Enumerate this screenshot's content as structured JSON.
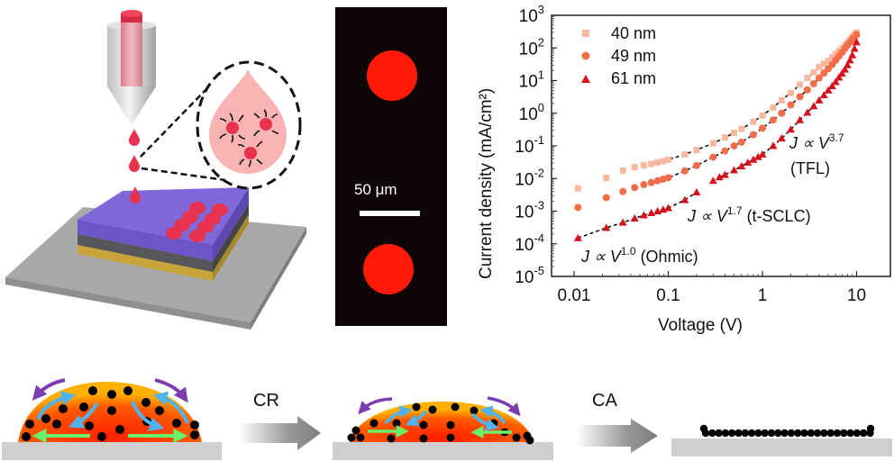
{
  "figure": {
    "panel_a": {
      "description": "Inkjet printing of quantum-dot ink droplets onto a layered substrate",
      "colors": {
        "nozzle_ink": "#e8334f",
        "droplet": "#e8334f",
        "inset_drop": "#f9b3b3",
        "top_layer": "#7a63d6",
        "middle_layer": "#58585c",
        "bottom_layer": "#c9a43b",
        "base": "#a8a8a8"
      }
    },
    "panel_b": {
      "scale_bar_label": "50 μm",
      "colors": {
        "background": "#0e0606",
        "dots": "#ff1a0a"
      }
    },
    "panel_d": {
      "step1_label": "CR",
      "step2_label": "CA",
      "colors": {
        "drop_center": "#ff2a00",
        "drop_edge": "#ffa200",
        "particles": "#000000",
        "substrate": "#cfcfcf",
        "arrow_purple": "#7b3db0",
        "arrow_blue": "#4fb3ef",
        "arrow_green": "#6af06a",
        "process_arrow": "#8a8a8a"
      }
    }
  },
  "chart_data": {
    "type": "scatter",
    "title": "",
    "xlabel": "Voltage (V)",
    "ylabel": "Current density (mA/cm²)",
    "xscale": "log",
    "yscale": "log",
    "xlim": [
      0.008,
      14
    ],
    "ylim": [
      1e-05,
      1000
    ],
    "xticks": [
      {
        "value": 0.01,
        "label": "0.01"
      },
      {
        "value": 0.1,
        "label": "0.1"
      },
      {
        "value": 1,
        "label": "1"
      },
      {
        "value": 10,
        "label": "10"
      }
    ],
    "yticks": [
      {
        "value": 1e-05,
        "base": "10",
        "exp": "-5"
      },
      {
        "value": 0.0001,
        "base": "10",
        "exp": "-4"
      },
      {
        "value": 0.001,
        "base": "10",
        "exp": "-3"
      },
      {
        "value": 0.01,
        "base": "10",
        "exp": "-2"
      },
      {
        "value": 0.1,
        "base": "10",
        "exp": "-1"
      },
      {
        "value": 1,
        "base": "10",
        "exp": "0"
      },
      {
        "value": 10,
        "base": "10",
        "exp": "1"
      },
      {
        "value": 100,
        "base": "10",
        "exp": "2"
      },
      {
        "value": 1000,
        "base": "10",
        "exp": "3"
      }
    ],
    "grid": false,
    "legend_position": "top-left",
    "series": [
      {
        "name": "40 nm",
        "marker": "square",
        "color": "#f8b9a0",
        "x": [
          0.011,
          0.022,
          0.033,
          0.044,
          0.055,
          0.066,
          0.077,
          0.088,
          0.1,
          0.15,
          0.2,
          0.3,
          0.4,
          0.5,
          0.6,
          0.8,
          1.0,
          1.3,
          1.6,
          2.0,
          2.5,
          3.0,
          3.5,
          4.0,
          4.5,
          5.0,
          5.5,
          6.0,
          6.5,
          7.0,
          7.5,
          8.0,
          8.5,
          9.0,
          9.5,
          10.0
        ],
        "y": [
          0.005,
          0.0105,
          0.0175,
          0.022,
          0.025,
          0.028,
          0.031,
          0.034,
          0.038,
          0.055,
          0.075,
          0.12,
          0.18,
          0.25,
          0.33,
          0.55,
          0.85,
          1.5,
          2.5,
          4.2,
          7.5,
          12,
          18,
          26,
          33,
          40,
          52,
          66,
          82,
          100,
          122,
          148,
          178,
          215,
          255,
          300
        ]
      },
      {
        "name": "49 nm",
        "marker": "circle",
        "color": "#f26d4a",
        "x": [
          0.011,
          0.022,
          0.033,
          0.044,
          0.055,
          0.066,
          0.077,
          0.088,
          0.1,
          0.15,
          0.2,
          0.3,
          0.4,
          0.5,
          0.6,
          0.8,
          1.0,
          1.3,
          1.6,
          2.0,
          2.5,
          3.0,
          3.5,
          4.0,
          4.5,
          5.0,
          5.5,
          6.0,
          6.5,
          7.0,
          7.5,
          8.0,
          8.5,
          9.0,
          9.5,
          10.0
        ],
        "y": [
          0.0013,
          0.0026,
          0.004,
          0.0053,
          0.0065,
          0.0075,
          0.0085,
          0.0095,
          0.0105,
          0.017,
          0.025,
          0.045,
          0.07,
          0.1,
          0.13,
          0.22,
          0.35,
          0.62,
          1.0,
          1.8,
          3.2,
          5.2,
          8.0,
          12,
          17,
          23,
          31,
          42,
          56,
          73,
          95,
          120,
          150,
          185,
          220,
          255
        ]
      },
      {
        "name": "61 nm",
        "marker": "triangle",
        "color": "#d7101f",
        "x": [
          0.011,
          0.022,
          0.033,
          0.044,
          0.055,
          0.066,
          0.077,
          0.088,
          0.1,
          0.15,
          0.2,
          0.3,
          0.35,
          0.4,
          0.5,
          0.6,
          0.7,
          0.8,
          0.9,
          1.0,
          1.3,
          1.6,
          2.0,
          2.5,
          3.0,
          3.5,
          4.0,
          4.5,
          5.0,
          5.5,
          6.0,
          6.5,
          7.0,
          7.5,
          8.0,
          8.5,
          9.0,
          9.5,
          10.0
        ],
        "y": [
          0.00015,
          0.00031,
          0.00045,
          0.0006,
          0.00075,
          0.00088,
          0.001,
          0.00112,
          0.00125,
          0.0022,
          0.0038,
          0.0085,
          0.011,
          0.013,
          0.018,
          0.024,
          0.031,
          0.038,
          0.046,
          0.055,
          0.1,
          0.17,
          0.32,
          0.62,
          1.05,
          1.65,
          2.5,
          3.6,
          5.0,
          6.8,
          9.2,
          12.5,
          16.5,
          22,
          30,
          42,
          60,
          95,
          150
        ]
      }
    ],
    "fit_lines": [
      {
        "series": "40 nm",
        "x_range": [
          0.066,
          5.5
        ],
        "description": "dashed fit"
      },
      {
        "series": "49 nm",
        "x_range": [
          0.066,
          6.0
        ],
        "description": "dashed fit"
      },
      {
        "series": "61 nm",
        "x_range": [
          0.011,
          0.2
        ],
        "slope": 1.0,
        "description": "Ohmic fit"
      },
      {
        "series": "61 nm",
        "x_range": [
          0.35,
          1.0
        ],
        "slope": 1.7,
        "description": "t-SCLC fit"
      },
      {
        "series": "61 nm",
        "x_range": [
          1.0,
          4.0
        ],
        "slope": 3.7,
        "description": "TFL fit"
      }
    ],
    "annotations": [
      {
        "prefix": "J ∝ V",
        "exp": "1.0",
        "suffix": " (Ohmic)"
      },
      {
        "prefix": "J ∝ V",
        "exp": "1.7",
        "suffix": " (t-SCLC)"
      },
      {
        "prefix": "J ∝ V",
        "exp": "3.7",
        "suffix": "",
        "line2": "(TFL)"
      }
    ]
  }
}
